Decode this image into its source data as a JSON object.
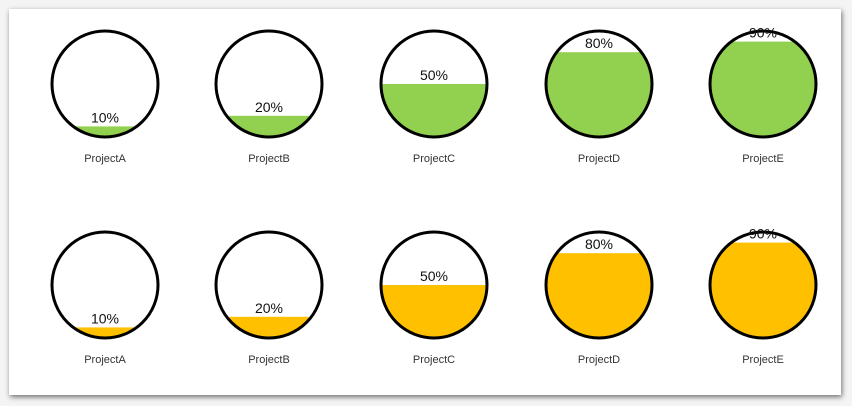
{
  "chart_data": [
    {
      "type": "liquid-fill-gauge",
      "color": "#92d050",
      "categories": [
        "ProjectA",
        "ProjectB",
        "ProjectC",
        "ProjectD",
        "ProjectE"
      ],
      "values": [
        10,
        20,
        50,
        80,
        90
      ],
      "value_labels": [
        "10%",
        "20%",
        "50%",
        "80%",
        "90%"
      ],
      "range": [
        0,
        100
      ]
    },
    {
      "type": "liquid-fill-gauge",
      "color": "#ffc000",
      "categories": [
        "ProjectA",
        "ProjectB",
        "ProjectC",
        "ProjectD",
        "ProjectE"
      ],
      "values": [
        10,
        20,
        50,
        80,
        90
      ],
      "value_labels": [
        "10%",
        "20%",
        "50%",
        "80%",
        "90%"
      ],
      "range": [
        0,
        100
      ]
    }
  ]
}
